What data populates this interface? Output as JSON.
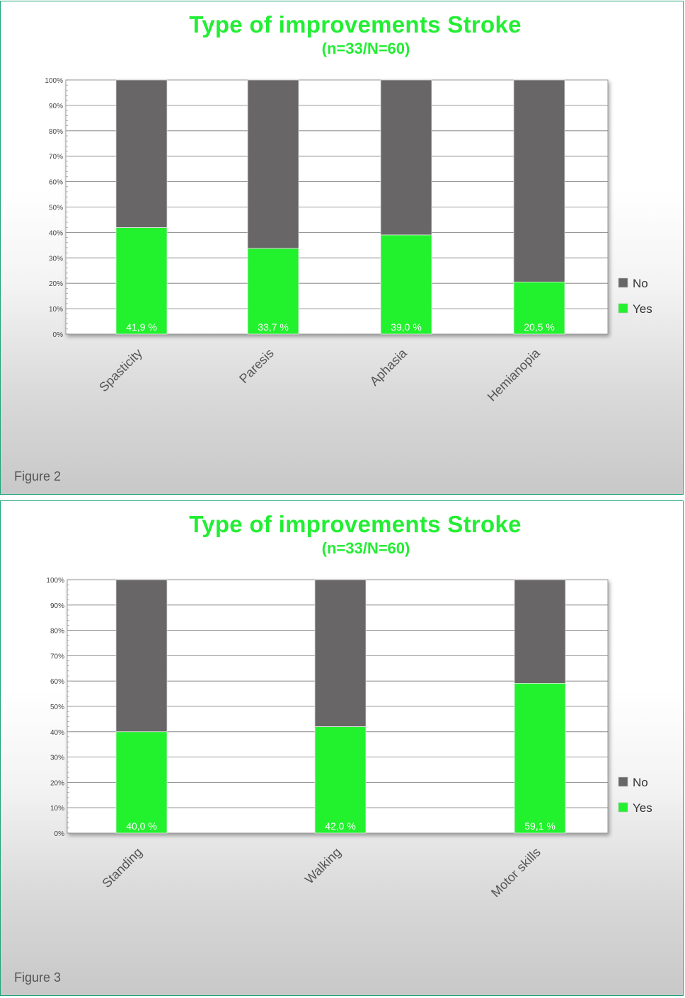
{
  "chart_data": [
    {
      "type": "bar",
      "stacked": true,
      "title": "Type of improvements Stroke",
      "subtitle": "(n=33/N=60)",
      "caption": "Figure 2",
      "categories": [
        "Spasticity",
        "Paresis",
        "Aphasia",
        "Hemianopia"
      ],
      "series": [
        {
          "name": "Yes",
          "values": [
            41.9,
            33.7,
            39.0,
            20.5
          ],
          "labels": [
            "41,9 %",
            "33,7 %",
            "39,0 %",
            "20,5 %"
          ],
          "color": "#22f22e"
        },
        {
          "name": "No",
          "values": [
            58.1,
            66.3,
            61.0,
            79.5
          ],
          "color": "#686667"
        }
      ],
      "ylim": [
        0,
        100
      ],
      "yticks": [
        "0%",
        "10%",
        "20%",
        "30%",
        "40%",
        "50%",
        "60%",
        "70%",
        "80%",
        "90%",
        "100%"
      ],
      "legend": [
        "No",
        "Yes"
      ],
      "legend_position": "right",
      "grid": true
    },
    {
      "type": "bar",
      "stacked": true,
      "title": "Type of improvements Stroke",
      "subtitle": "(n=33/N=60)",
      "caption": "Figure 3",
      "categories": [
        "Standing",
        "Walking",
        "Motor skills"
      ],
      "series": [
        {
          "name": "Yes",
          "values": [
            40.0,
            42.0,
            59.1
          ],
          "labels": [
            "40,0 %",
            "42,0 %",
            "59,1 %"
          ],
          "color": "#22f22e"
        },
        {
          "name": "No",
          "values": [
            60.0,
            58.0,
            40.9
          ],
          "color": "#686667"
        }
      ],
      "ylim": [
        0,
        100
      ],
      "yticks": [
        "0%",
        "10%",
        "20%",
        "30%",
        "40%",
        "50%",
        "60%",
        "70%",
        "80%",
        "90%",
        "100%"
      ],
      "legend": [
        "No",
        "Yes"
      ],
      "legend_position": "right",
      "grid": true
    }
  ]
}
